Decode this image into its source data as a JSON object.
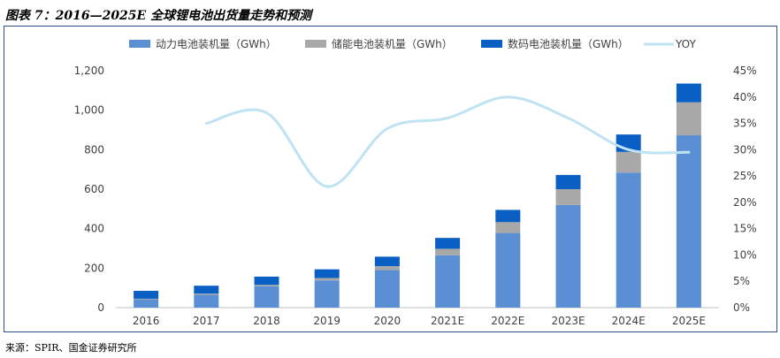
{
  "figure": {
    "title": "图表 7：2016—2025E 全球锂电池出货量走势和预测",
    "source": "来源：SPIR、国金证券研究所"
  },
  "colors": {
    "power": "#5b8fd4",
    "storage": "#a8a8a8",
    "digital": "#0a5fc4",
    "yoy": "#bfe3f2",
    "frame": "#2f4f8a"
  },
  "chart_data": {
    "type": "bar",
    "stacked": true,
    "categories": [
      "2016",
      "2017",
      "2018",
      "2019",
      "2020",
      "2021E",
      "2022E",
      "2023E",
      "2024E",
      "2025E"
    ],
    "series": [
      {
        "name": "动力电池装机量（GWh）",
        "type": "bar",
        "axis": "left",
        "values": [
          42,
          65,
          108,
          138,
          190,
          265,
          378,
          520,
          684,
          873
        ]
      },
      {
        "name": "储能电池装机量（GWh）",
        "type": "bar",
        "axis": "left",
        "values": [
          3,
          6,
          7,
          12,
          20,
          33,
          55,
          80,
          105,
          167
        ]
      },
      {
        "name": "数码电池装机量（GWh）",
        "type": "bar",
        "axis": "left",
        "values": [
          40,
          40,
          42,
          44,
          48,
          55,
          62,
          72,
          88,
          95
        ]
      },
      {
        "name": "YOY",
        "type": "line",
        "axis": "right",
        "values": [
          null,
          0.35,
          0.37,
          0.23,
          0.34,
          0.36,
          0.4,
          0.36,
          0.3,
          0.295
        ]
      }
    ],
    "y_left": {
      "min": 0,
      "max": 1200,
      "ticks": [
        "0",
        "200",
        "400",
        "600",
        "800",
        "1,000",
        "1,200"
      ]
    },
    "y_right": {
      "min": 0,
      "max": 0.45,
      "ticks": [
        "0%",
        "5%",
        "10%",
        "15%",
        "20%",
        "25%",
        "30%",
        "35%",
        "40%",
        "45%"
      ]
    },
    "legend": {
      "placement": "top"
    },
    "grid": false
  }
}
